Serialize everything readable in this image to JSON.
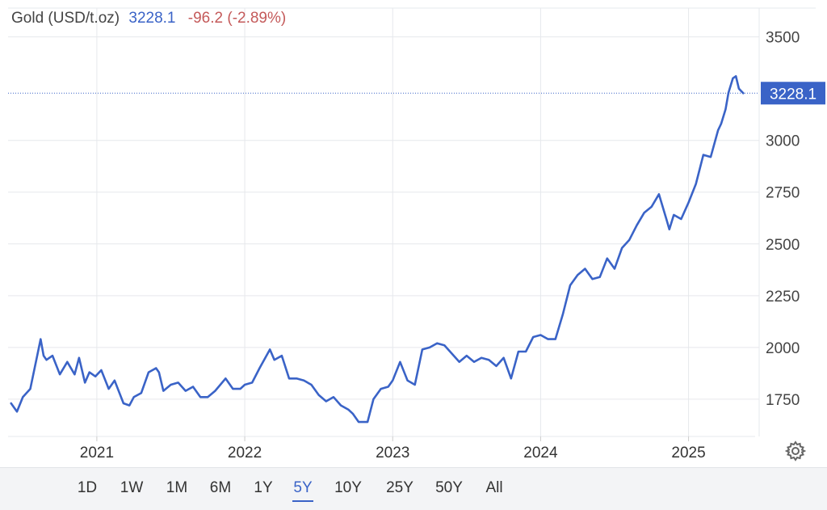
{
  "header": {
    "name": "Gold (USD/t.oz)",
    "price": "3228.1",
    "change": "-96.2 (-2.89%)"
  },
  "current_label": "3228.1",
  "colors": {
    "line": "#3a63c7",
    "change": "#c45a5a",
    "grid": "#e6e8ec",
    "label_bg": "#3a63c7"
  },
  "settings_icon": "gear-icon",
  "range_buttons": [
    "1D",
    "1W",
    "1M",
    "6M",
    "1Y",
    "5Y",
    "10Y",
    "25Y",
    "50Y",
    "All"
  ],
  "active_range": "5Y",
  "chart_data": {
    "type": "line",
    "title": "Gold (USD/t.oz)",
    "xlabel": "",
    "ylabel": "",
    "x_ticks": [
      "2021",
      "2022",
      "2023",
      "2024",
      "2025"
    ],
    "y_ticks": [
      1750,
      2000,
      2250,
      2500,
      2750,
      3000,
      3500
    ],
    "ylim": [
      1570,
      3600
    ],
    "xlim": [
      2020.4,
      2025.45
    ],
    "grid": true,
    "current_value": 3228.1,
    "series": [
      {
        "name": "",
        "x": [
          2020.42,
          2020.46,
          2020.5,
          2020.55,
          2020.6,
          2020.62,
          2020.64,
          2020.66,
          2020.7,
          2020.75,
          2020.8,
          2020.85,
          2020.88,
          2020.92,
          2020.95,
          2020.99,
          2021.03,
          2021.08,
          2021.12,
          2021.18,
          2021.22,
          2021.25,
          2021.3,
          2021.35,
          2021.4,
          2021.42,
          2021.45,
          2021.5,
          2021.55,
          2021.6,
          2021.65,
          2021.7,
          2021.75,
          2021.8,
          2021.87,
          2021.92,
          2021.97,
          2022.0,
          2022.05,
          2022.1,
          2022.17,
          2022.2,
          2022.25,
          2022.3,
          2022.35,
          2022.4,
          2022.45,
          2022.5,
          2022.55,
          2022.6,
          2022.65,
          2022.7,
          2022.73,
          2022.77,
          2022.8,
          2022.83,
          2022.87,
          2022.92,
          2022.97,
          2023.0,
          2023.05,
          2023.1,
          2023.15,
          2023.2,
          2023.25,
          2023.3,
          2023.35,
          2023.4,
          2023.45,
          2023.5,
          2023.55,
          2023.6,
          2023.65,
          2023.7,
          2023.75,
          2023.8,
          2023.85,
          2023.9,
          2023.95,
          2024.0,
          2024.05,
          2024.1,
          2024.15,
          2024.2,
          2024.25,
          2024.3,
          2024.35,
          2024.4,
          2024.45,
          2024.5,
          2024.55,
          2024.6,
          2024.65,
          2024.7,
          2024.75,
          2024.8,
          2024.85,
          2024.87,
          2024.9,
          2024.95,
          2025.0,
          2025.05,
          2025.1,
          2025.15,
          2025.2,
          2025.22,
          2025.25,
          2025.27,
          2025.3,
          2025.32,
          2025.34,
          2025.37
        ],
        "values": [
          1730,
          1690,
          1760,
          1800,
          1970,
          2040,
          1960,
          1940,
          1960,
          1870,
          1930,
          1870,
          1950,
          1830,
          1880,
          1860,
          1890,
          1800,
          1840,
          1730,
          1720,
          1760,
          1780,
          1880,
          1900,
          1880,
          1790,
          1820,
          1830,
          1790,
          1810,
          1760,
          1760,
          1790,
          1850,
          1800,
          1800,
          1820,
          1830,
          1900,
          1990,
          1940,
          1960,
          1850,
          1850,
          1840,
          1820,
          1770,
          1740,
          1760,
          1720,
          1700,
          1680,
          1640,
          1640,
          1640,
          1750,
          1800,
          1810,
          1840,
          1930,
          1840,
          1820,
          1990,
          2000,
          2020,
          2010,
          1970,
          1930,
          1960,
          1930,
          1950,
          1940,
          1910,
          1950,
          1850,
          1980,
          1980,
          2050,
          2060,
          2040,
          2040,
          2160,
          2300,
          2350,
          2380,
          2330,
          2340,
          2430,
          2380,
          2480,
          2520,
          2590,
          2650,
          2680,
          2740,
          2620,
          2570,
          2640,
          2620,
          2700,
          2790,
          2930,
          2920,
          3050,
          3080,
          3150,
          3230,
          3300,
          3310,
          3250,
          3228.1
        ]
      }
    ]
  }
}
